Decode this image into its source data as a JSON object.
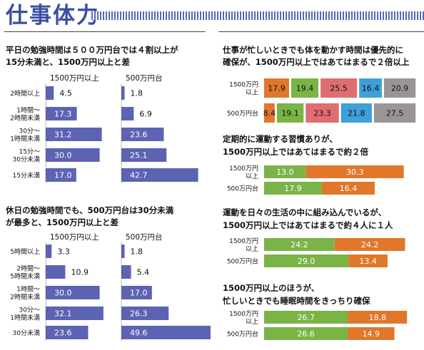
{
  "header": {
    "title": "仕事体力"
  },
  "colors": {
    "title": "#3a4fa0",
    "bar_blue": "#5b63b2",
    "orange": "#e0772a",
    "green": "#7ab447",
    "pink": "#e06d70",
    "sky": "#3f9fd8",
    "gray": "#9a9594"
  },
  "chart_data": [
    {
      "type": "bar",
      "title_lines": [
        "平日の勉強時間は５００万円台では４割以上が",
        "15分未満と、1500万円以上と差"
      ],
      "categories": [
        [
          "2時間以上"
        ],
        [
          "1時間〜",
          "2時間未満"
        ],
        [
          "30分〜",
          "1時間未満"
        ],
        [
          "15分〜",
          "30分未満"
        ],
        [
          "15分未満"
        ]
      ],
      "series": [
        {
          "name": "1500万円以上",
          "values": [
            4.5,
            17.3,
            31.2,
            30.0,
            17.0
          ]
        },
        {
          "name": "500万円台",
          "values": [
            1.8,
            6.9,
            23.6,
            25.1,
            42.7
          ]
        }
      ]
    },
    {
      "type": "bar",
      "title_lines": [
        "休日の勉強時間でも、500万円台は30分未満",
        "が最多と、1500万円以上と差"
      ],
      "categories": [
        [
          "5時間以上"
        ],
        [
          "2時間〜",
          "5時間未満"
        ],
        [
          "1時間〜",
          "2時間未満"
        ],
        [
          "30分〜",
          "1時間未満"
        ],
        [
          "30分未満"
        ]
      ],
      "series": [
        {
          "name": "1500万円以上",
          "values": [
            3.3,
            10.9,
            30.0,
            32.1,
            23.6
          ]
        },
        {
          "name": "500万円台",
          "values": [
            1.8,
            5.4,
            17.0,
            26.3,
            49.6
          ]
        }
      ]
    },
    {
      "type": "bar",
      "stacked": true,
      "title_lines": [
        "仕事が忙しいときでも体を動かす時間は優先的に",
        "確保が、1500万円以上ではあてはまるで２倍以上"
      ],
      "categories": [
        [
          "1500万円",
          "以上"
        ],
        [
          "500万円台"
        ]
      ],
      "segment_colors": [
        "orange",
        "green",
        "pink",
        "sky",
        "gray"
      ],
      "rows": [
        [
          17.9,
          19.4,
          25.5,
          16.4,
          20.9
        ],
        [
          8.4,
          19.1,
          23.3,
          21.8,
          27.5
        ]
      ]
    },
    {
      "type": "bar",
      "stacked": true,
      "title_lines": [
        "定期的に運動する習慣ありが、",
        "1500万円以上ではあてはまるで約２倍"
      ],
      "categories": [
        [
          "1500万円",
          "以上"
        ],
        [
          "500万円台"
        ]
      ],
      "segment_colors": [
        "green",
        "orange"
      ],
      "rows": [
        [
          13.0,
          30.3
        ],
        [
          17.9,
          16.4
        ]
      ]
    },
    {
      "type": "bar",
      "stacked": true,
      "title_lines": [
        "運動を日々の生活の中に組み込んでいるが、",
        "1500万円以上ではあてはまるで約４人に１人"
      ],
      "categories": [
        [
          "1500万円",
          "以上"
        ],
        [
          "500万円台"
        ]
      ],
      "segment_colors": [
        "green",
        "orange"
      ],
      "rows": [
        [
          24.2,
          24.2
        ],
        [
          29.0,
          13.4
        ]
      ]
    },
    {
      "type": "bar",
      "stacked": true,
      "title_lines": [
        "1500万円以上のほうが、",
        "忙しいときでも睡眠時間をきっちり確保"
      ],
      "categories": [
        [
          "1500万円",
          "以上"
        ],
        [
          "500万円台"
        ]
      ],
      "segment_colors": [
        "green",
        "orange"
      ],
      "rows": [
        [
          26.7,
          18.8
        ],
        [
          26.6,
          14.9
        ]
      ]
    }
  ]
}
